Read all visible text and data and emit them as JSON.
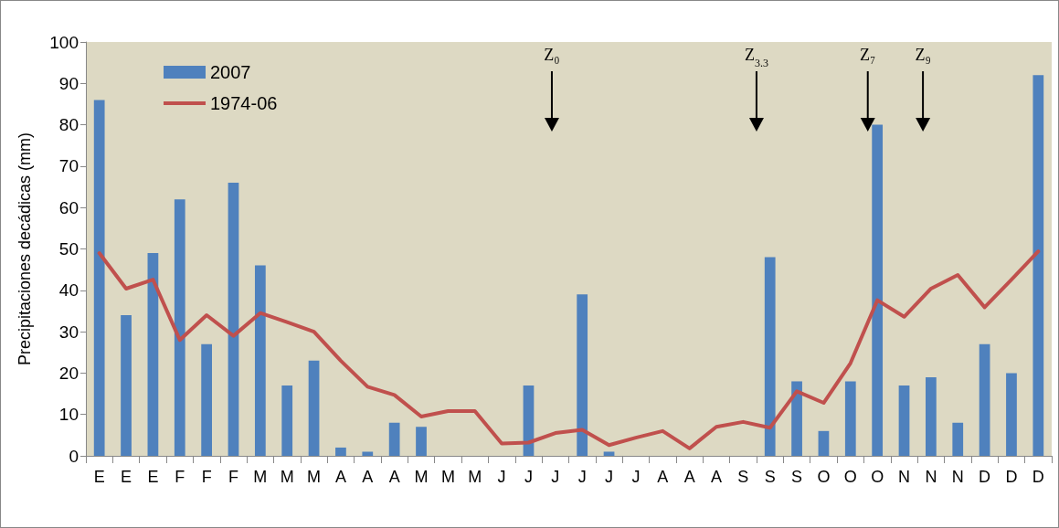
{
  "chart_data": {
    "type": "bar",
    "ylabel": "Precipitaciones decádicas (mm)",
    "categories": [
      "E",
      "E",
      "E",
      "F",
      "F",
      "F",
      "M",
      "M",
      "M",
      "A",
      "A",
      "A",
      "M",
      "M",
      "M",
      "J",
      "J",
      "J",
      "J",
      "J",
      "J",
      "A",
      "A",
      "A",
      "S",
      "S",
      "S",
      "O",
      "O",
      "O",
      "N",
      "N",
      "N",
      "D",
      "D",
      "D"
    ],
    "series": [
      {
        "name": "2007",
        "color": "#4f81bd",
        "values": [
          86,
          34,
          49,
          62,
          27,
          66,
          46,
          17,
          23,
          2,
          1,
          8,
          7,
          0,
          0,
          0,
          17,
          0,
          39,
          1,
          0,
          0,
          0,
          0,
          0,
          48,
          18,
          6,
          18,
          80,
          17,
          19,
          8,
          27,
          20,
          92
        ]
      },
      {
        "name": "1974-06",
        "type": "line",
        "color": "#c0504d",
        "values": [
          49,
          40.4,
          42.6,
          28,
          34,
          29,
          34.5,
          32.3,
          30,
          23,
          16.7,
          14.7,
          9.5,
          10.8,
          10.8,
          3,
          3.2,
          5.5,
          6.3,
          2.6,
          4.4,
          6,
          1.8,
          7,
          8.2,
          6.8,
          15.6,
          12.8,
          22.4,
          37.6,
          33.6,
          40.4,
          43.7,
          35.9,
          42.6,
          49.4
        ]
      }
    ],
    "ylim": [
      0,
      100
    ],
    "yticks": [
      0,
      10,
      20,
      30,
      40,
      50,
      60,
      70,
      80,
      90,
      100
    ],
    "grid": false,
    "legend": "top left",
    "marker": "none",
    "line_style": "solid",
    "annotations": [
      "Z₀",
      "Z$_{3.3}$",
      "Z₇",
      "Z₉"
    ]
  }
}
